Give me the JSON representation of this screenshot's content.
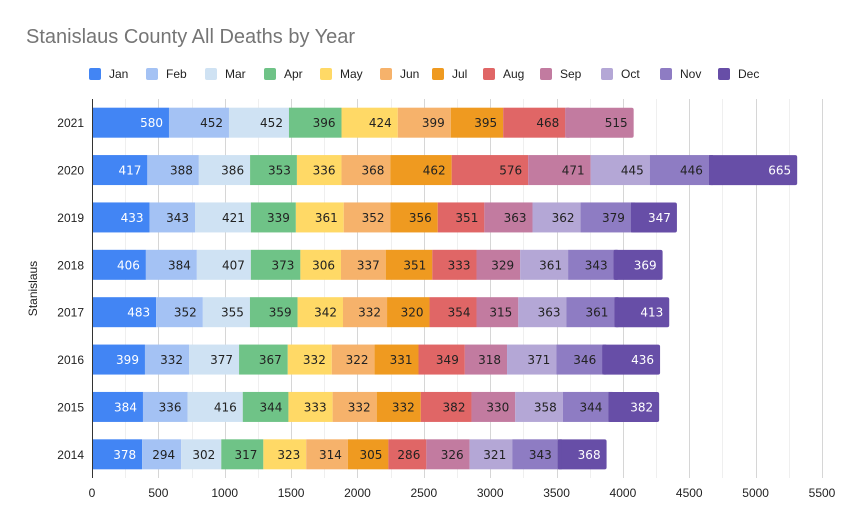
{
  "chart_data": {
    "type": "bar",
    "orientation": "horizontal",
    "stacked": true,
    "title": "Stanislaus County All Deaths by Year",
    "xlabel": "",
    "ylabel": "Stanislaus",
    "xlim": [
      0,
      5500
    ],
    "xticks": [
      0,
      500,
      1000,
      1500,
      2000,
      2500,
      3000,
      3500,
      4000,
      4500,
      5000,
      5500
    ],
    "minor_grid_step": 250,
    "grid": true,
    "legend_position": "top",
    "categories": [
      "2021",
      "2020",
      "2019",
      "2018",
      "2017",
      "2016",
      "2015",
      "2014"
    ],
    "series": [
      {
        "name": "Jan",
        "color": "#4285f4",
        "label_color": "#ffffff",
        "values": [
          580,
          417,
          433,
          406,
          483,
          399,
          384,
          378
        ]
      },
      {
        "name": "Feb",
        "color": "#a4c2f4",
        "label_color": "#222222",
        "values": [
          452,
          388,
          343,
          384,
          352,
          332,
          336,
          294
        ]
      },
      {
        "name": "Mar",
        "color": "#cfe2f3",
        "label_color": "#222222",
        "values": [
          452,
          386,
          421,
          407,
          355,
          377,
          416,
          302
        ]
      },
      {
        "name": "Apr",
        "color": "#6fc387",
        "label_color": "#222222",
        "values": [
          396,
          353,
          339,
          373,
          359,
          367,
          344,
          317
        ]
      },
      {
        "name": "May",
        "color": "#ffd966",
        "label_color": "#222222",
        "values": [
          424,
          336,
          361,
          306,
          342,
          332,
          333,
          323
        ]
      },
      {
        "name": "Jun",
        "color": "#f6b26b",
        "label_color": "#222222",
        "values": [
          399,
          368,
          352,
          337,
          332,
          322,
          332,
          314
        ]
      },
      {
        "name": "Jul",
        "color": "#ef9a20",
        "label_color": "#222222",
        "values": [
          395,
          462,
          356,
          351,
          320,
          331,
          332,
          305
        ]
      },
      {
        "name": "Aug",
        "color": "#e06666",
        "label_color": "#222222",
        "values": [
          468,
          576,
          351,
          333,
          354,
          349,
          382,
          286
        ]
      },
      {
        "name": "Sep",
        "color": "#c27ba0",
        "label_color": "#222222",
        "values": [
          515,
          471,
          363,
          329,
          315,
          318,
          330,
          326
        ]
      },
      {
        "name": "Oct",
        "color": "#b4a7d6",
        "label_color": "#222222",
        "values": [
          null,
          445,
          362,
          361,
          363,
          371,
          358,
          321
        ]
      },
      {
        "name": "Nov",
        "color": "#8e7cc3",
        "label_color": "#222222",
        "values": [
          null,
          446,
          379,
          343,
          361,
          346,
          344,
          343
        ]
      },
      {
        "name": "Dec",
        "color": "#674ea7",
        "label_color": "#ffffff",
        "values": [
          null,
          665,
          347,
          369,
          413,
          436,
          382,
          368
        ]
      }
    ]
  }
}
